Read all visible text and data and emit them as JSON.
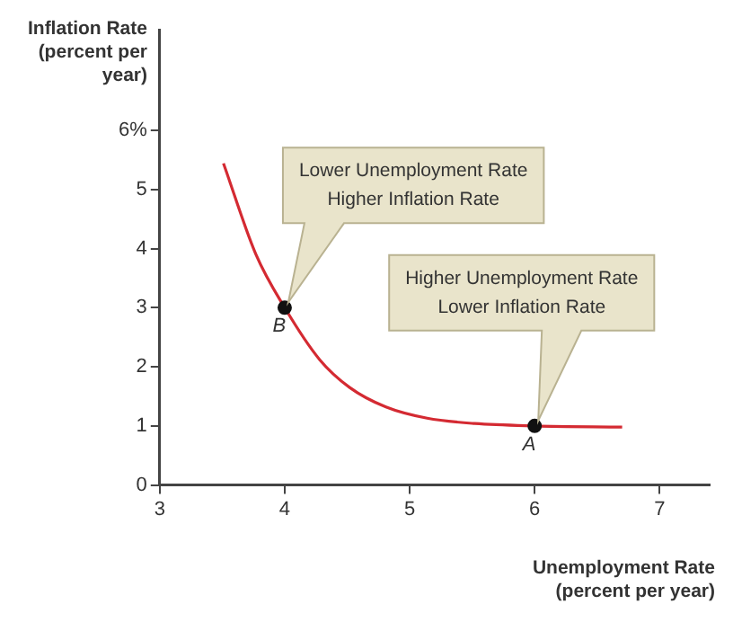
{
  "chart_data": {
    "type": "line",
    "xlabel": "Unemployment Rate (percent per year)",
    "ylabel": "Inflation Rate (percent per year)",
    "xlim": [
      3,
      7.4
    ],
    "xticks": [
      3,
      4,
      5,
      6,
      7
    ],
    "ylim": [
      0,
      7.7
    ],
    "yticks": [
      0,
      1,
      2,
      3,
      4,
      5,
      {
        "value": 6,
        "label": "6%"
      }
    ],
    "grid": false,
    "legend": false,
    "series": [
      {
        "type": "line",
        "color": "#d42a32",
        "marker": "none",
        "x": [
          3.51,
          3.77,
          4.0,
          4.28,
          4.52,
          4.81,
          5.14,
          5.52,
          6.0,
          6.7
        ],
        "values": [
          5.44,
          3.9,
          3.0,
          2.12,
          1.65,
          1.32,
          1.13,
          1.04,
          1.0,
          0.98
        ]
      },
      {
        "type": "scatter",
        "color": "#111111",
        "marker": "circle",
        "x": [
          4,
          6
        ],
        "values": [
          3,
          1
        ]
      }
    ],
    "annotations": [
      {
        "text": "B",
        "x": 4,
        "y": 3
      },
      {
        "text": "A",
        "x": 6,
        "y": 1
      },
      "Lower Unemployment Rate\nHigher Inflation Rate",
      "Higher Unemployment Rate\nLower Inflation Rate"
    ]
  }
}
